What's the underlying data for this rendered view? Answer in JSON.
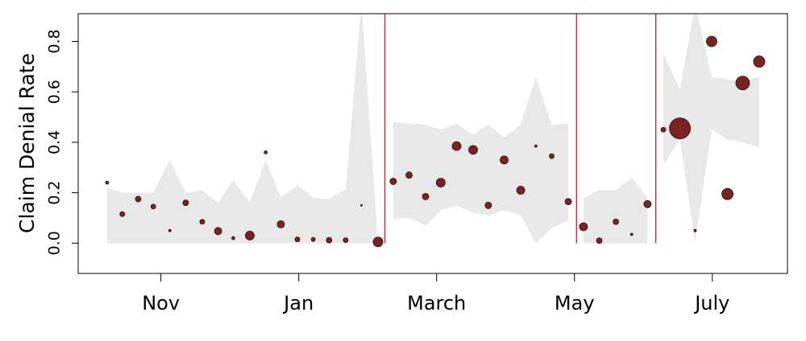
{
  "chart_data": {
    "type": "bubble-band",
    "y_label": "Claim Denial Rate",
    "xlim": [
      9.8,
      20.09
    ],
    "xticks": [
      {
        "value": 11,
        "label": "Nov"
      },
      {
        "value": 13,
        "label": "Jan"
      },
      {
        "value": 15,
        "label": "March"
      },
      {
        "value": 17,
        "label": "May"
      },
      {
        "value": 19,
        "label": "July"
      }
    ],
    "ylim": [
      -0.12,
      0.91
    ],
    "yticks": [
      {
        "value": 0,
        "label": "0.0"
      },
      0.2,
      0.4,
      0.6,
      0.8
    ],
    "point_color": "#7b2323",
    "band_color": "#e8e8e8",
    "break_color": "#e0191c",
    "breaks": [
      14.25,
      17.03,
      18.18
    ],
    "segments": [
      {
        "x": [
          10.22,
          10.44,
          10.67,
          10.89,
          11.13,
          11.36,
          11.6,
          11.83,
          12.05,
          12.29,
          12.52,
          12.74,
          12.98,
          13.21,
          13.44,
          13.68,
          13.91,
          14.15
        ],
        "values": [
          0.24,
          0.115,
          0.175,
          0.145,
          0.05,
          0.16,
          0.085,
          0.048,
          0.02,
          0.03,
          0.36,
          0.075,
          0.015,
          0.015,
          0.012,
          0.012,
          0.15,
          0.005
        ],
        "sizes": [
          2,
          3,
          3.5,
          3,
          1.5,
          3.5,
          3,
          4.5,
          2,
          5.5,
          2,
          4.5,
          3,
          2.5,
          3.5,
          3,
          1,
          6
        ],
        "upper": [
          0.22,
          0.2,
          0.2,
          0.2,
          0.33,
          0.2,
          0.21,
          0.16,
          0.25,
          0.16,
          0.33,
          0.18,
          0.23,
          0.18,
          0.175,
          0.215,
          0.95,
          0
        ],
        "lower": [
          0,
          0,
          0,
          0,
          0,
          0,
          0,
          0,
          0,
          0,
          0,
          0,
          0,
          0,
          0,
          0,
          0,
          0
        ]
      },
      {
        "x": [
          14.37,
          14.6,
          14.84,
          15.06,
          15.29,
          15.53,
          15.75,
          15.98,
          16.22,
          16.44,
          16.67,
          16.91
        ],
        "values": [
          0.245,
          0.27,
          0.185,
          0.24,
          0.385,
          0.37,
          0.15,
          0.33,
          0.21,
          0.385,
          0.345,
          0.165
        ],
        "sizes": [
          4,
          4,
          4,
          5.5,
          5.5,
          5.5,
          4,
          5,
          5,
          1.5,
          3,
          4
        ],
        "upper": [
          0.48,
          0.475,
          0.47,
          0.45,
          0.475,
          0.43,
          0.47,
          0.42,
          0.47,
          0.66,
          0.47,
          0.475
        ],
        "lower": [
          0.095,
          0.1,
          0.07,
          0.13,
          0.15,
          0.12,
          0.11,
          0.13,
          0.11,
          0.0,
          0.06,
          0.09
        ]
      },
      {
        "x": [
          17.13,
          17.36,
          17.6,
          17.83,
          18.06
        ],
        "values": [
          0.065,
          0.01,
          0.085,
          0.035,
          0.155
        ],
        "sizes": [
          5,
          3.5,
          3.5,
          1.5,
          4.5
        ],
        "upper": [
          0.18,
          0.21,
          0.21,
          0.26,
          0.18
        ],
        "lower": [
          0,
          0,
          0,
          0,
          0
        ]
      },
      {
        "x": [
          18.29,
          18.53,
          18.75,
          18.99,
          19.22,
          19.44,
          19.68
        ],
        "values": [
          0.45,
          0.455,
          0.05,
          0.8,
          0.195,
          0.635,
          0.72
        ],
        "sizes": [
          3,
          13,
          1.5,
          6.5,
          7,
          8.5,
          7
        ],
        "upper": [
          0.75,
          0.61,
          0.95,
          0.66,
          0.65,
          0.64,
          0.66
        ],
        "lower": [
          0.31,
          0.41,
          0.0,
          0.45,
          0.41,
          0.4,
          0.38
        ]
      }
    ]
  }
}
